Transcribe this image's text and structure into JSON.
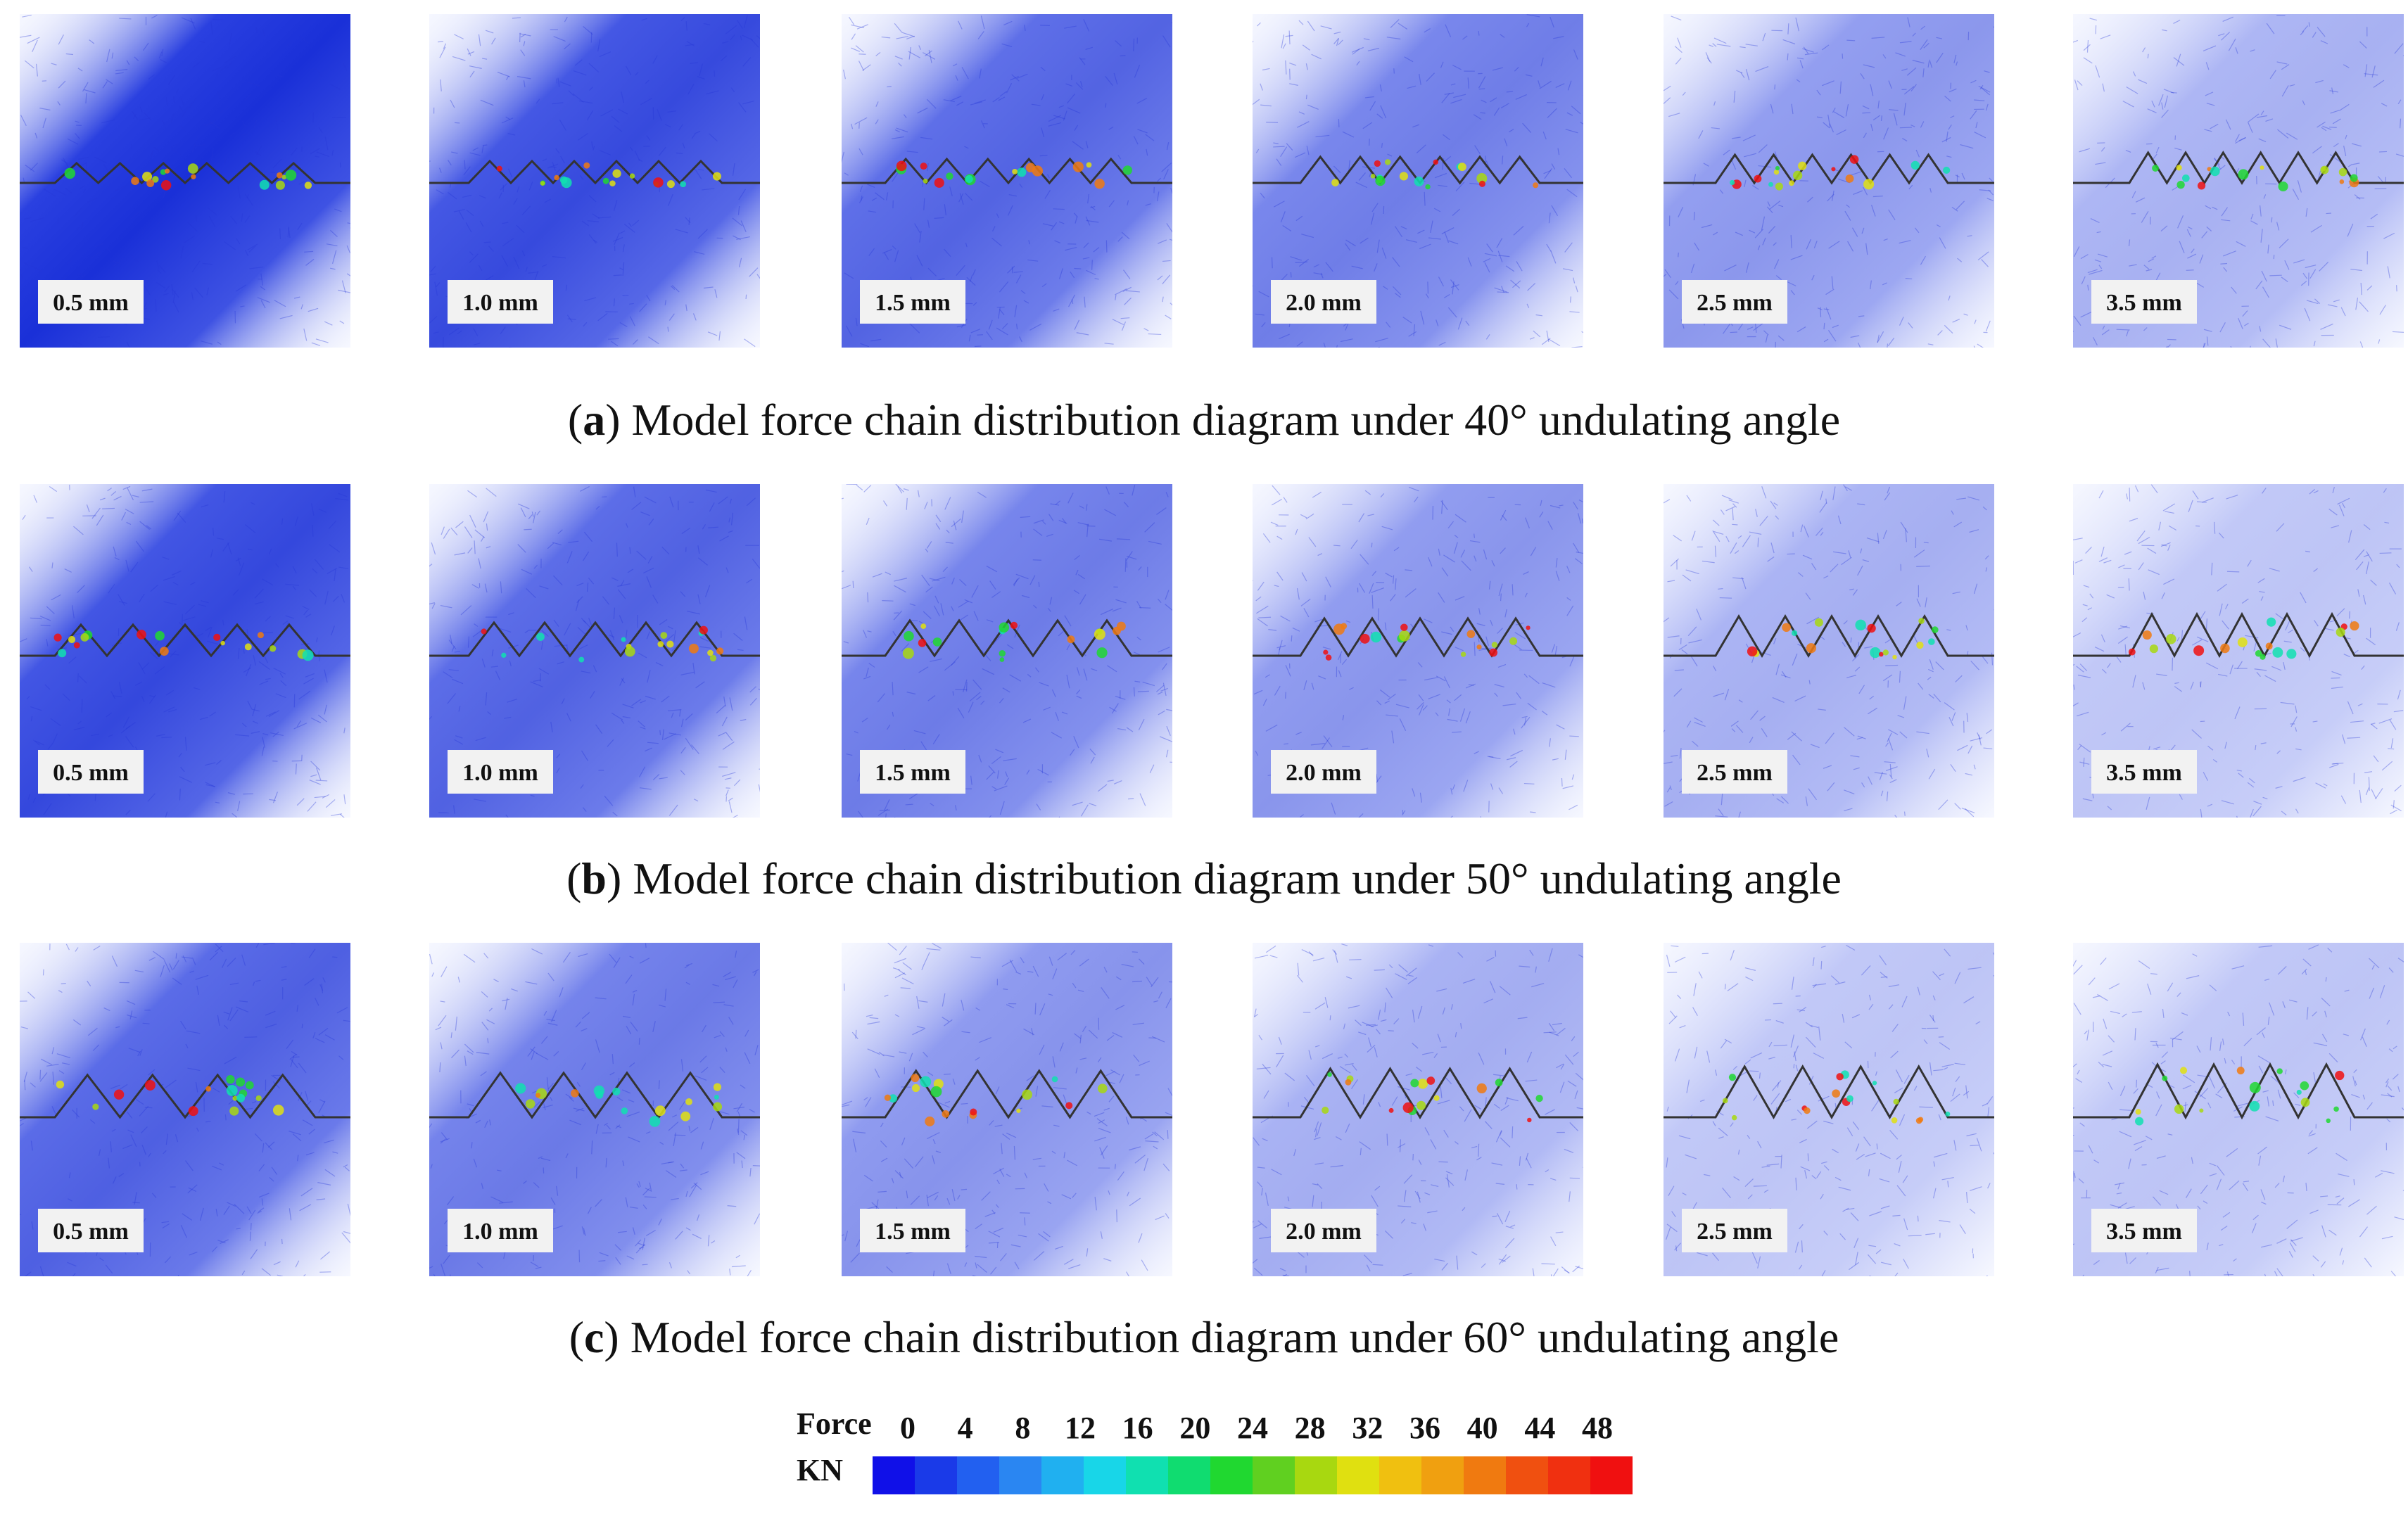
{
  "rows": [
    {
      "caption_prefix": "(",
      "caption_letter": "a",
      "caption_text": ") Model force chain distribution diagram under 40° undulating angle",
      "angle_deg": 40,
      "labels": [
        "0.5 mm",
        "1.0 mm",
        "1.5 mm",
        "2.0 mm",
        "2.5 mm",
        "3.5 mm"
      ]
    },
    {
      "caption_prefix": "(",
      "caption_letter": "b",
      "caption_text": ") Model force chain distribution diagram under 50° undulating angle",
      "angle_deg": 50,
      "labels": [
        "0.5 mm",
        "1.0 mm",
        "1.5 mm",
        "2.0 mm",
        "2.5 mm",
        "3.5 mm"
      ]
    },
    {
      "caption_prefix": "(",
      "caption_letter": "c",
      "caption_text": ") Model force chain distribution diagram under 60° undulating angle",
      "angle_deg": 60,
      "labels": [
        "0.5 mm",
        "1.0 mm",
        "1.5 mm",
        "2.0 mm",
        "2.5 mm",
        "3.5 mm"
      ]
    }
  ],
  "legend": {
    "title_line1": "Force",
    "title_line2": "KN",
    "ticks": [
      "0",
      "4",
      "8",
      "12",
      "16",
      "20",
      "24",
      "28",
      "32",
      "36",
      "40",
      "44",
      "48"
    ],
    "colors": [
      "#1010e8",
      "#1a3ae8",
      "#2260f0",
      "#2a86f2",
      "#20b0f0",
      "#18d6e8",
      "#10e0b0",
      "#10dc70",
      "#20d830",
      "#60d020",
      "#a8d810",
      "#e0e010",
      "#f0c010",
      "#f0a010",
      "#f07a10",
      "#f05010",
      "#f03010",
      "#f01010"
    ]
  }
}
